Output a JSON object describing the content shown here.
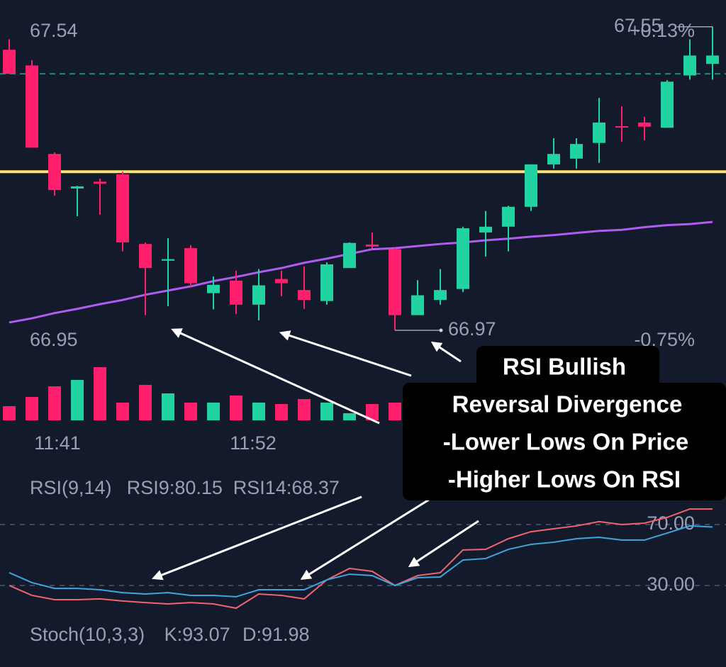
{
  "chart_data": [
    {
      "type": "candlestick",
      "categories": [
        null,
        null,
        "11:41",
        null,
        null,
        null,
        null,
        null,
        null,
        null,
        null,
        "11:52",
        null,
        null,
        null,
        null,
        null,
        null,
        null,
        null,
        null,
        null,
        null,
        null,
        null,
        null,
        null,
        null,
        null,
        null,
        null,
        null
      ],
      "open": [
        67.506,
        67.476,
        67.307,
        67.241,
        67.254,
        67.268,
        67.135,
        67.103,
        67.127,
        67.041,
        67.065,
        67.019,
        67.068,
        67.047,
        67.026,
        67.089,
        67.134,
        67.125,
        66.999,
        67.028,
        67.049,
        67.157,
        67.168,
        67.206,
        67.287,
        67.298,
        67.328,
        67.36,
        67.367,
        67.357,
        67.457,
        67.479
      ],
      "high": [
        67.526,
        67.486,
        67.31,
        67.246,
        67.26,
        67.273,
        67.138,
        67.146,
        67.133,
        67.073,
        67.084,
        67.087,
        67.084,
        67.092,
        67.1,
        67.138,
        67.157,
        67.127,
        67.066,
        67.087,
        67.168,
        67.198,
        67.208,
        67.287,
        67.337,
        67.337,
        67.414,
        67.398,
        67.378,
        67.448,
        67.526,
        67.55
      ],
      "low": [
        67.46,
        67.319,
        67.227,
        67.188,
        67.191,
        67.121,
        66.999,
        67.016,
        67.053,
        67.01,
        67.001,
        66.989,
        67.035,
        67.011,
        67.019,
        67.089,
        67.127,
        66.97,
        66.999,
        67.019,
        67.043,
        67.111,
        67.121,
        67.198,
        67.279,
        67.279,
        67.29,
        67.33,
        67.333,
        67.357,
        67.449,
        67.449
      ],
      "close": [
        67.46,
        67.319,
        67.238,
        67.245,
        67.25,
        67.138,
        67.089,
        67.106,
        67.06,
        67.057,
        67.019,
        67.056,
        67.06,
        67.028,
        67.096,
        67.137,
        67.13,
        66.999,
        67.037,
        67.047,
        67.165,
        67.168,
        67.206,
        67.287,
        67.307,
        67.326,
        67.367,
        67.359,
        67.359,
        67.445,
        67.495,
        67.495
      ],
      "up_color": "#21d3a0",
      "down_color": "#ff1f6c",
      "ylim": [
        66.924,
        67.574
      ],
      "yticks": [
        66.95,
        67.54
      ],
      "right_labels": [
        "+0.13%",
        "-0.75%"
      ],
      "moving_average": {
        "color": "#b05cf0",
        "values": [
          66.985,
          66.993,
          67.003,
          67.011,
          67.02,
          67.028,
          67.038,
          67.046,
          67.054,
          67.064,
          67.072,
          67.081,
          67.089,
          67.099,
          67.107,
          67.116,
          67.125,
          67.127,
          67.131,
          67.135,
          67.138,
          67.142,
          67.145,
          67.149,
          67.152,
          67.156,
          67.16,
          67.162,
          67.167,
          67.171,
          67.173,
          67.177
        ]
      },
      "hlines": [
        {
          "value": 67.273,
          "color": "#ffe36e",
          "dashed": false
        },
        {
          "value": 67.46,
          "color": "#1fa88c",
          "dashed": true
        }
      ],
      "annotation": [
        "RSI Bullish",
        "Reversal Divergence",
        "-Lower Lows On Price",
        "-Higher Lows On RSI"
      ]
    },
    {
      "type": "bar",
      "ylim": [
        0,
        100
      ],
      "values": [
        20,
        33,
        48,
        57,
        75,
        25,
        50,
        38,
        25,
        25,
        35,
        25,
        23,
        30,
        25,
        10,
        23,
        25
      ]
    },
    {
      "type": "line",
      "title": "RSI(9,14)",
      "ylim": [
        5,
        86
      ],
      "yticks": [
        {
          "value": 30,
          "label": "30.00"
        },
        {
          "value": 70,
          "label": "70.00"
        }
      ],
      "series": [
        {
          "name": "RSI9:80.15",
          "color": "#f0646e",
          "values": [
            30.0,
            23.5,
            20.7,
            20.7,
            21.2,
            19.8,
            18.8,
            17.9,
            18.8,
            17.9,
            15.1,
            24.4,
            23.5,
            21.2,
            33.7,
            41.2,
            39.3,
            30.0,
            36.5,
            38.4,
            53.3,
            53.7,
            60.7,
            65.3,
            67.2,
            69.1,
            71.9,
            70.0,
            70.9,
            74.7,
            80.2,
            80.15
          ]
        },
        {
          "name": "RSI14:68.37",
          "color": "#3ea6de",
          "values": [
            38.4,
            31.9,
            28.1,
            28.1,
            27.2,
            25.3,
            24.4,
            25.3,
            23.5,
            23.5,
            22.6,
            27.2,
            27.2,
            27.2,
            33.7,
            37.4,
            36.5,
            30.0,
            35.1,
            35.6,
            46.7,
            47.7,
            53.7,
            57.0,
            58.4,
            60.7,
            61.6,
            59.8,
            59.8,
            64.4,
            69.1,
            68.37
          ]
        }
      ]
    },
    {
      "type": "line",
      "title": "Stoch(10,3,3)",
      "series": [
        {
          "name": "K:93.07",
          "color": "#2f8ef0",
          "values": []
        },
        {
          "name": "D:91.98",
          "color": "#f0902a",
          "values": []
        }
      ]
    }
  ]
}
